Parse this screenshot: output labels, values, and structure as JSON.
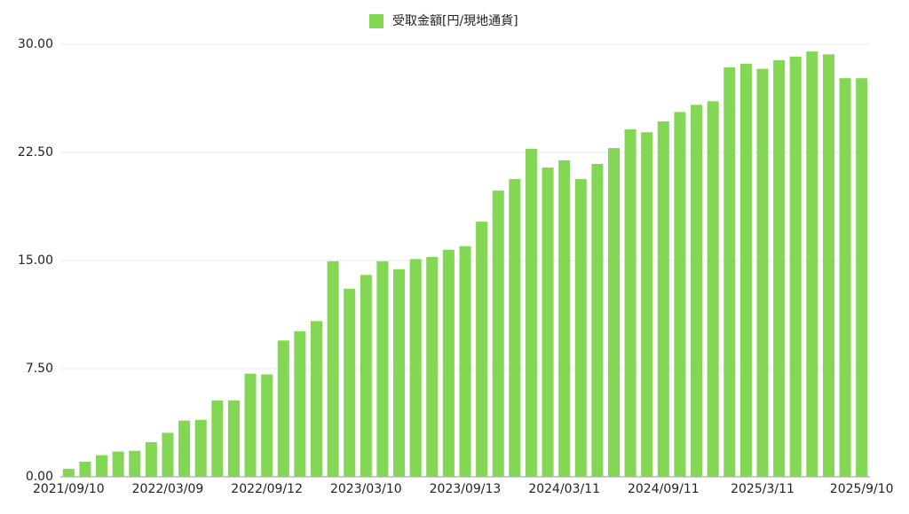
{
  "chart_data": {
    "type": "bar",
    "categories": [
      "2021/09/10",
      null,
      null,
      null,
      null,
      null,
      "2022/03/09",
      null,
      null,
      null,
      null,
      null,
      "2022/09/12",
      null,
      null,
      null,
      null,
      null,
      "2023/03/10",
      null,
      null,
      null,
      null,
      null,
      "2023/09/13",
      null,
      null,
      null,
      null,
      null,
      "2024/03/11",
      null,
      null,
      null,
      null,
      null,
      "2024/09/11",
      null,
      null,
      null,
      null,
      null,
      "2025/3/11",
      null,
      null,
      null,
      null,
      null,
      "2025/9/10"
    ],
    "series": [
      {
        "name": "受取金額[円/現地通貨]",
        "color": "#84d655",
        "values": [
          0.55,
          1.05,
          1.5,
          1.75,
          1.8,
          2.4,
          3.05,
          3.9,
          3.95,
          5.3,
          5.3,
          7.15,
          7.1,
          9.45,
          10.1,
          10.8,
          14.95,
          13.05,
          14.0,
          14.95,
          14.4,
          15.1,
          15.25,
          15.75,
          16.0,
          17.7,
          19.85,
          20.65,
          22.75,
          21.45,
          21.95,
          20.65,
          21.7,
          22.8,
          24.1,
          23.9,
          24.65,
          25.3,
          25.8,
          26.05,
          28.4,
          28.65,
          28.3,
          28.9,
          29.15,
          29.5,
          29.3,
          27.65,
          27.65
        ]
      }
    ],
    "ylim": [
      0,
      30
    ],
    "yticks": [
      {
        "value": 0,
        "label": "0.00"
      },
      {
        "value": 7.5,
        "label": "7.50"
      },
      {
        "value": 15,
        "label": "15.00"
      },
      {
        "value": 22.5,
        "label": "22.50"
      },
      {
        "value": 30,
        "label": "30.00"
      }
    ],
    "grid": true,
    "legend": "top"
  }
}
